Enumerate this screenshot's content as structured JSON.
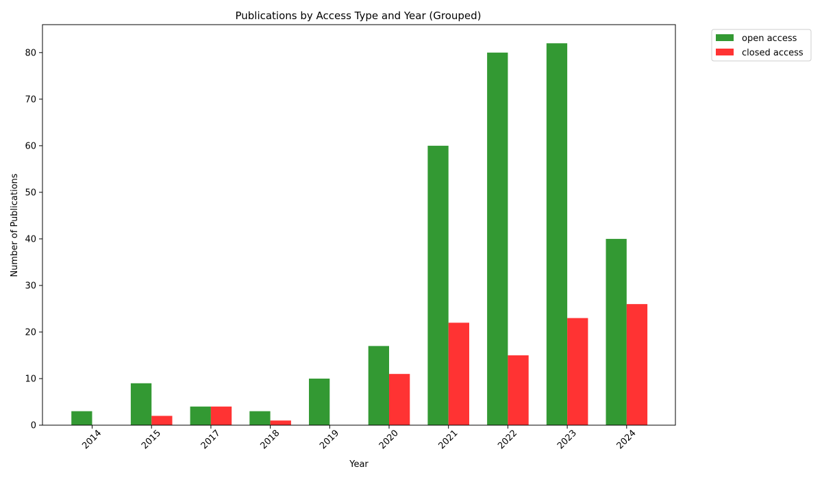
{
  "chart_data": {
    "type": "bar",
    "title": "Publications by Access Type and Year (Grouped)",
    "xlabel": "Year",
    "ylabel": "Number of Publications",
    "categories": [
      "2014",
      "2015",
      "2017",
      "2018",
      "2019",
      "2020",
      "2021",
      "2022",
      "2023",
      "2024"
    ],
    "series": [
      {
        "name": "open access",
        "color": "#339933",
        "values": [
          3,
          9,
          4,
          3,
          10,
          17,
          60,
          80,
          82,
          40
        ]
      },
      {
        "name": "closed access",
        "color": "#ff3333",
        "values": [
          0,
          2,
          4,
          1,
          0,
          11,
          22,
          15,
          23,
          26
        ]
      }
    ],
    "ylim": [
      0,
      86
    ],
    "yticks": [
      0,
      10,
      20,
      30,
      40,
      50,
      60,
      70,
      80
    ],
    "grid": false,
    "legend_position": "outside top-right"
  }
}
